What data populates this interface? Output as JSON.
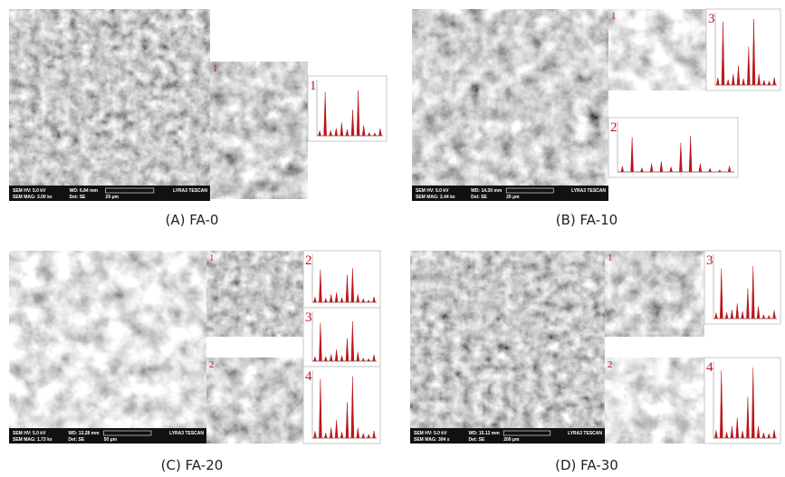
{
  "panels": [
    {
      "caption": "(A) FA-0",
      "sem_info": {
        "hv": "SEM HV: 5.0 kV",
        "wd": "WD: 6.84 mm",
        "brand": "LYRA3 TESCAN",
        "mag": "SEM MAG: 3.00 kx",
        "det": "Det: SE",
        "scale": "20 μm"
      },
      "zooms": [
        {
          "label": "1"
        }
      ],
      "spectra": [
        {
          "label": "1"
        }
      ]
    },
    {
      "caption": "(B) FA-10",
      "sem_info": {
        "hv": "SEM HV: 5.0 kV",
        "wd": "WD: 14.30 mm",
        "brand": "LYRA3 TESCAN",
        "mag": "SEM MAG: 2.44 kx",
        "det": "Det: SE",
        "scale": "20 μm"
      },
      "zooms": [
        {
          "label": "1"
        }
      ],
      "spectra": [
        {
          "label": "3"
        },
        {
          "label": "2"
        }
      ]
    },
    {
      "caption": "(C) FA-20",
      "sem_info": {
        "hv": "SEM HV: 5.0 kV",
        "wd": "WD: 13.28 mm",
        "brand": "LYRA3 TESCAN",
        "mag": "SEM MAG: 1.73 kx",
        "det": "Det: SE",
        "scale": "50 μm"
      },
      "zooms": [
        {
          "label": "1"
        },
        {
          "label": "2"
        }
      ],
      "spectra": [
        {
          "label": "2"
        },
        {
          "label": "3"
        },
        {
          "label": "4"
        }
      ]
    },
    {
      "caption": "(D) FA-30",
      "sem_info": {
        "hv": "SEM HV: 5.0 kV",
        "wd": "WD: 15.12 mm",
        "brand": "LYRA3 TESCAN",
        "mag": "SEM MAG: 304 x",
        "det": "Det: SE",
        "scale": "200 μm"
      },
      "zooms": [
        {
          "label": "1"
        },
        {
          "label": "2"
        }
      ],
      "spectra": [
        {
          "label": "3"
        },
        {
          "label": "4"
        }
      ]
    }
  ]
}
